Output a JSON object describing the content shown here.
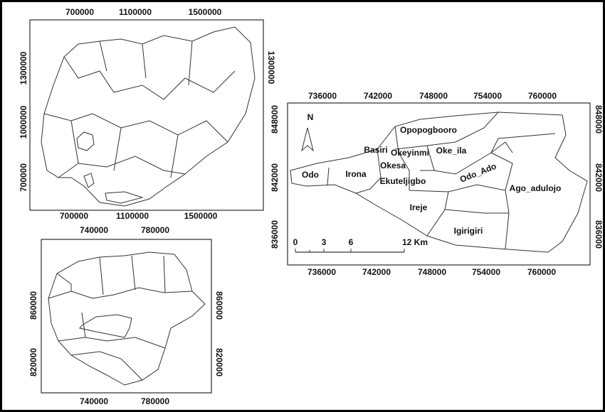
{
  "nigeria_map": {
    "top_ticks": [
      "700000",
      "1100000",
      "1500000"
    ],
    "bottom_ticks": [
      "700000",
      "1100000",
      "1500000"
    ],
    "left_ticks": [
      "1300000",
      "1000000",
      "700000"
    ],
    "right_ticks": [
      "1300000"
    ]
  },
  "state_map": {
    "top_ticks": [
      "740000",
      "780000"
    ],
    "bottom_ticks": [
      "740000",
      "780000"
    ],
    "left_ticks": [
      "860000",
      "820000"
    ],
    "right_ticks": [
      "860000",
      "820000"
    ]
  },
  "study_area_map": {
    "top_ticks": [
      "736000",
      "742000",
      "748000",
      "754000",
      "760000"
    ],
    "bottom_ticks": [
      "736000",
      "742000",
      "748000",
      "754000",
      "760000"
    ],
    "left_ticks": [
      "848000",
      "842000",
      "836000"
    ],
    "right_ticks": [
      "848000",
      "842000",
      "836000"
    ],
    "north_arrow": "N",
    "scale_labels": [
      "0",
      "3",
      "6",
      "12 Km"
    ],
    "regions": [
      "Opopogbooro",
      "Basiri",
      "Okeyinmi",
      "Oke_ila",
      "Okesa",
      "Odo",
      "Irona",
      "Ekuteljigbo",
      "Odo_Ado",
      "Ago_adulojo",
      "Ireje",
      "Igirigiri"
    ]
  }
}
